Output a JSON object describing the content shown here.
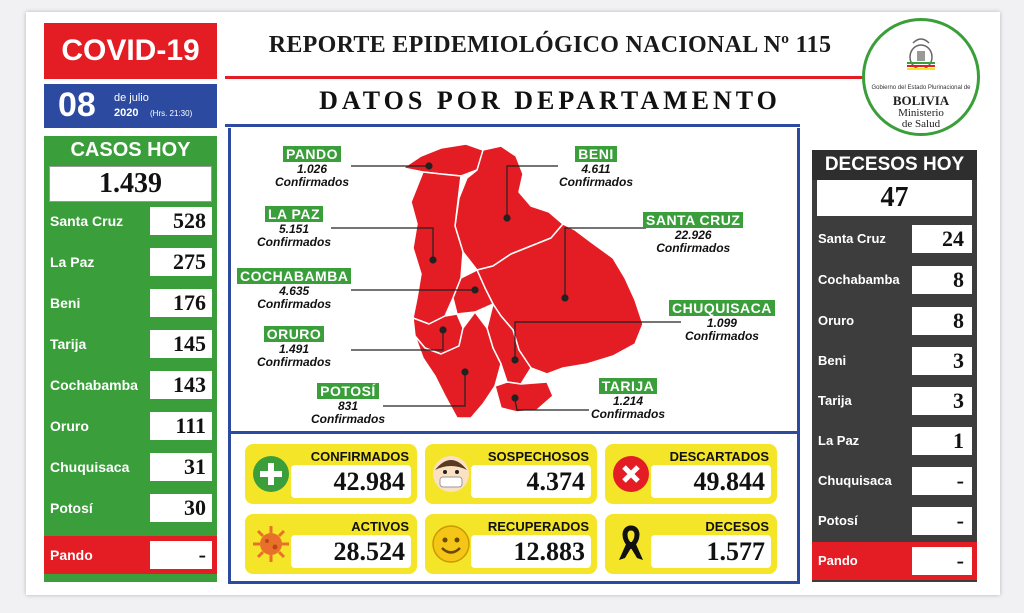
{
  "header": {
    "badge": "COVID-19",
    "title": "REPORTE EPIDEMIOLÓGICO NACIONAL Nº 115",
    "day": "08",
    "month": "de julio",
    "year": "2020",
    "time": "(Hrs. 21:30)",
    "subtitle": "DATOS POR DEPARTAMENTO"
  },
  "logo": {
    "line1": "Gobierno del Estado Plurinacional de",
    "line2": "BOLIVIA",
    "line3": "Ministerio",
    "line4": "de Salud"
  },
  "casos": {
    "title": "CASOS HOY",
    "total": "1.439",
    "rows": [
      {
        "label": "Santa Cruz",
        "value": "528"
      },
      {
        "label": "La Paz",
        "value": "275"
      },
      {
        "label": "Beni",
        "value": "176"
      },
      {
        "label": "Tarija",
        "value": "145"
      },
      {
        "label": "Cochabamba",
        "value": "143"
      },
      {
        "label": "Oruro",
        "value": "111"
      },
      {
        "label": "Chuquisaca",
        "value": "31"
      },
      {
        "label": "Potosí",
        "value": "30"
      },
      {
        "label": "Pando",
        "value": "-"
      }
    ]
  },
  "decesos": {
    "title": "DECESOS HOY",
    "total": "47",
    "rows": [
      {
        "label": "Santa Cruz",
        "value": "24"
      },
      {
        "label": "Cochabamba",
        "value": "8"
      },
      {
        "label": "Oruro",
        "value": "8"
      },
      {
        "label": "Beni",
        "value": "3"
      },
      {
        "label": "Tarija",
        "value": "3"
      },
      {
        "label": "La Paz",
        "value": "1"
      },
      {
        "label": "Chuquisaca",
        "value": "-"
      },
      {
        "label": "Potosí",
        "value": "-"
      },
      {
        "label": "Pando",
        "value": "-"
      }
    ]
  },
  "map": {
    "confirm_word": "Confirmados",
    "departments": [
      {
        "name": "PANDO",
        "value": "1.026"
      },
      {
        "name": "BENI",
        "value": "4.611"
      },
      {
        "name": "LA PAZ",
        "value": "5.151"
      },
      {
        "name": "SANTA CRUZ",
        "value": "22.926"
      },
      {
        "name": "COCHABAMBA",
        "value": "4.635"
      },
      {
        "name": "CHUQUISACA",
        "value": "1.099"
      },
      {
        "name": "ORURO",
        "value": "1.491"
      },
      {
        "name": "POTOSÍ",
        "value": "831"
      },
      {
        "name": "TARIJA",
        "value": "1.214"
      }
    ]
  },
  "stats": [
    {
      "label": "CONFIRMADOS",
      "value": "42.984",
      "icon": "plus-icon"
    },
    {
      "label": "SOSPECHOSOS",
      "value": "4.374",
      "icon": "masked-face-icon"
    },
    {
      "label": "DESCARTADOS",
      "value": "49.844",
      "icon": "cross-icon"
    },
    {
      "label": "ACTIVOS",
      "value": "28.524",
      "icon": "virus-icon"
    },
    {
      "label": "RECUPERADOS",
      "value": "12.883",
      "icon": "smile-icon"
    },
    {
      "label": "DECESOS",
      "value": "1.577",
      "icon": "ribbon-icon"
    }
  ],
  "colors": {
    "red": "#e31d23",
    "green": "#3a9e3a",
    "blue": "#2b4aa0",
    "yellow": "#f5e528",
    "dark": "#3d3d3d"
  }
}
